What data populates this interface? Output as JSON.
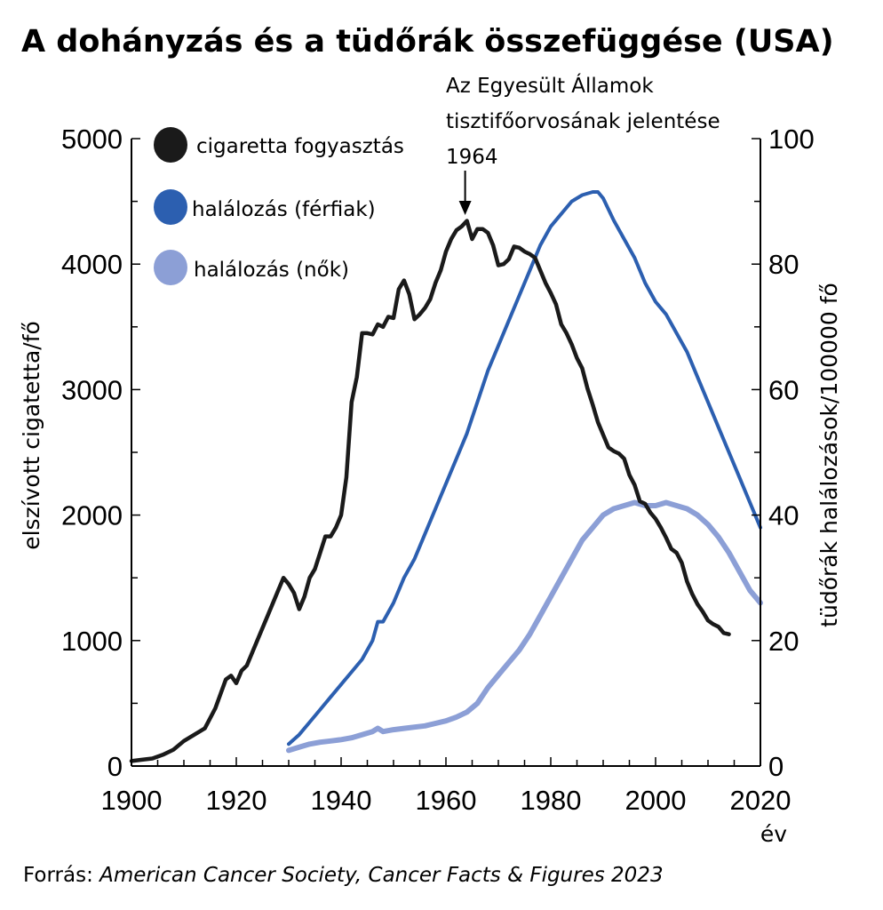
{
  "chart_data": {
    "type": "line",
    "title": "A dohányzás és a tüdőrák összefüggése (USA)",
    "xlabel": "év",
    "ylabel_left": "elszívott cigatetta/fő",
    "ylabel_right": "tüdőrák halálozások/100000 fő",
    "xlim": [
      1900,
      2020
    ],
    "ylim_left": [
      0,
      5000
    ],
    "ylim_right": [
      0,
      100
    ],
    "x_ticks": [
      "1900",
      "1920",
      "1940",
      "1960",
      "1980",
      "2000",
      "2020"
    ],
    "y_ticks_left": [
      "0",
      "1000",
      "2000",
      "3000",
      "4000",
      "5000"
    ],
    "y_ticks_right": [
      "0",
      "20",
      "40",
      "60",
      "80",
      "100"
    ],
    "grid": false,
    "legend_position": "top-left",
    "annotation": {
      "lines": [
        "Az Egyesült Államok",
        "tisztifőorvosának jelentése",
        "1964"
      ],
      "x": 1964
    },
    "source": {
      "prefix": "Forrás: ",
      "text": "American Cancer Society, Cancer Facts & Figures 2023"
    },
    "series": [
      {
        "name": "cigaretta fogyasztás",
        "axis": "left",
        "color": "#1a1a1a",
        "x": [
          1900,
          1902,
          1904,
          1906,
          1908,
          1910,
          1912,
          1914,
          1916,
          1918,
          1919,
          1920,
          1921,
          1922,
          1924,
          1926,
          1928,
          1929,
          1930,
          1931,
          1932,
          1933,
          1934,
          1935,
          1936,
          1937,
          1938,
          1939,
          1940,
          1941,
          1942,
          1943,
          1944,
          1945,
          1946,
          1947,
          1948,
          1949,
          1950,
          1951,
          1952,
          1953,
          1954,
          1955,
          1956,
          1957,
          1958,
          1959,
          1960,
          1961,
          1962,
          1963,
          1964,
          1965,
          1966,
          1967,
          1968,
          1969,
          1970,
          1971,
          1972,
          1973,
          1974,
          1975,
          1976,
          1977,
          1978,
          1979,
          1980,
          1981,
          1982,
          1983,
          1984,
          1985,
          1986,
          1987,
          1988,
          1989,
          1990,
          1991,
          1992,
          1993,
          1994,
          1995,
          1996,
          1997,
          1998,
          1999,
          2000,
          2001,
          2002,
          2003,
          2004,
          2005,
          2006,
          2007,
          2008,
          2009,
          2010,
          2011,
          2012,
          2013,
          2014
        ],
        "values": [
          40,
          50,
          60,
          90,
          130,
          200,
          250,
          300,
          460,
          690,
          720,
          660,
          760,
          800,
          1000,
          1200,
          1400,
          1500,
          1450,
          1380,
          1250,
          1350,
          1500,
          1570,
          1700,
          1830,
          1830,
          1900,
          2000,
          2300,
          2900,
          3100,
          3450,
          3450,
          3440,
          3520,
          3500,
          3580,
          3570,
          3800,
          3870,
          3760,
          3560,
          3600,
          3650,
          3720,
          3850,
          3950,
          4100,
          4200,
          4270,
          4300,
          4345,
          4200,
          4280,
          4280,
          4250,
          4150,
          3990,
          4000,
          4040,
          4140,
          4130,
          4100,
          4080,
          4050,
          3950,
          3850,
          3770,
          3680,
          3520,
          3450,
          3360,
          3250,
          3170,
          3010,
          2880,
          2740,
          2640,
          2540,
          2510,
          2490,
          2450,
          2320,
          2240,
          2110,
          2090,
          2020,
          1970,
          1900,
          1820,
          1730,
          1700,
          1620,
          1470,
          1370,
          1290,
          1230,
          1160,
          1130,
          1110,
          1060,
          1050
        ]
      },
      {
        "name": "halálozás (férfiak)",
        "axis": "right",
        "color": "#2c5fb0",
        "x": [
          1930,
          1932,
          1934,
          1936,
          1938,
          1940,
          1942,
          1944,
          1946,
          1947,
          1948,
          1950,
          1952,
          1954,
          1956,
          1958,
          1960,
          1962,
          1964,
          1966,
          1968,
          1970,
          1972,
          1974,
          1976,
          1978,
          1980,
          1982,
          1984,
          1986,
          1988,
          1989,
          1990,
          1992,
          1994,
          1996,
          1998,
          2000,
          2002,
          2004,
          2006,
          2008,
          2010,
          2012,
          2014,
          2016,
          2018,
          2020
        ],
        "values": [
          3.5,
          5,
          7,
          9,
          11,
          13,
          15,
          17,
          20,
          23,
          23,
          26,
          30,
          33,
          37,
          41,
          45,
          49,
          53,
          58,
          63,
          67,
          71,
          75,
          79,
          83,
          86,
          88,
          90,
          91,
          91.5,
          91.5,
          90.5,
          87,
          84,
          81,
          77,
          74,
          72,
          69,
          66,
          62,
          58,
          54,
          50,
          46,
          42,
          38
        ]
      },
      {
        "name": "halálozás (nők)",
        "axis": "right",
        "color": "#8c9fd6",
        "x": [
          1930,
          1932,
          1934,
          1936,
          1938,
          1940,
          1942,
          1944,
          1946,
          1947,
          1948,
          1950,
          1952,
          1954,
          1956,
          1958,
          1960,
          1962,
          1964,
          1966,
          1968,
          1970,
          1972,
          1974,
          1976,
          1978,
          1980,
          1982,
          1984,
          1986,
          1988,
          1990,
          1992,
          1994,
          1996,
          1998,
          2000,
          2002,
          2004,
          2006,
          2008,
          2010,
          2012,
          2014,
          2016,
          2018,
          2020
        ],
        "values": [
          2.5,
          3,
          3.5,
          3.8,
          4,
          4.2,
          4.5,
          5,
          5.5,
          6,
          5.5,
          5.8,
          6,
          6.2,
          6.4,
          6.8,
          7.2,
          7.8,
          8.6,
          10,
          12.5,
          14.5,
          16.5,
          18.5,
          21,
          24,
          27,
          30,
          33,
          36,
          38,
          40,
          41,
          41.5,
          42,
          41.5,
          41.5,
          42,
          41.5,
          41,
          40,
          38.5,
          36.5,
          34,
          31,
          28,
          26
        ]
      }
    ]
  }
}
